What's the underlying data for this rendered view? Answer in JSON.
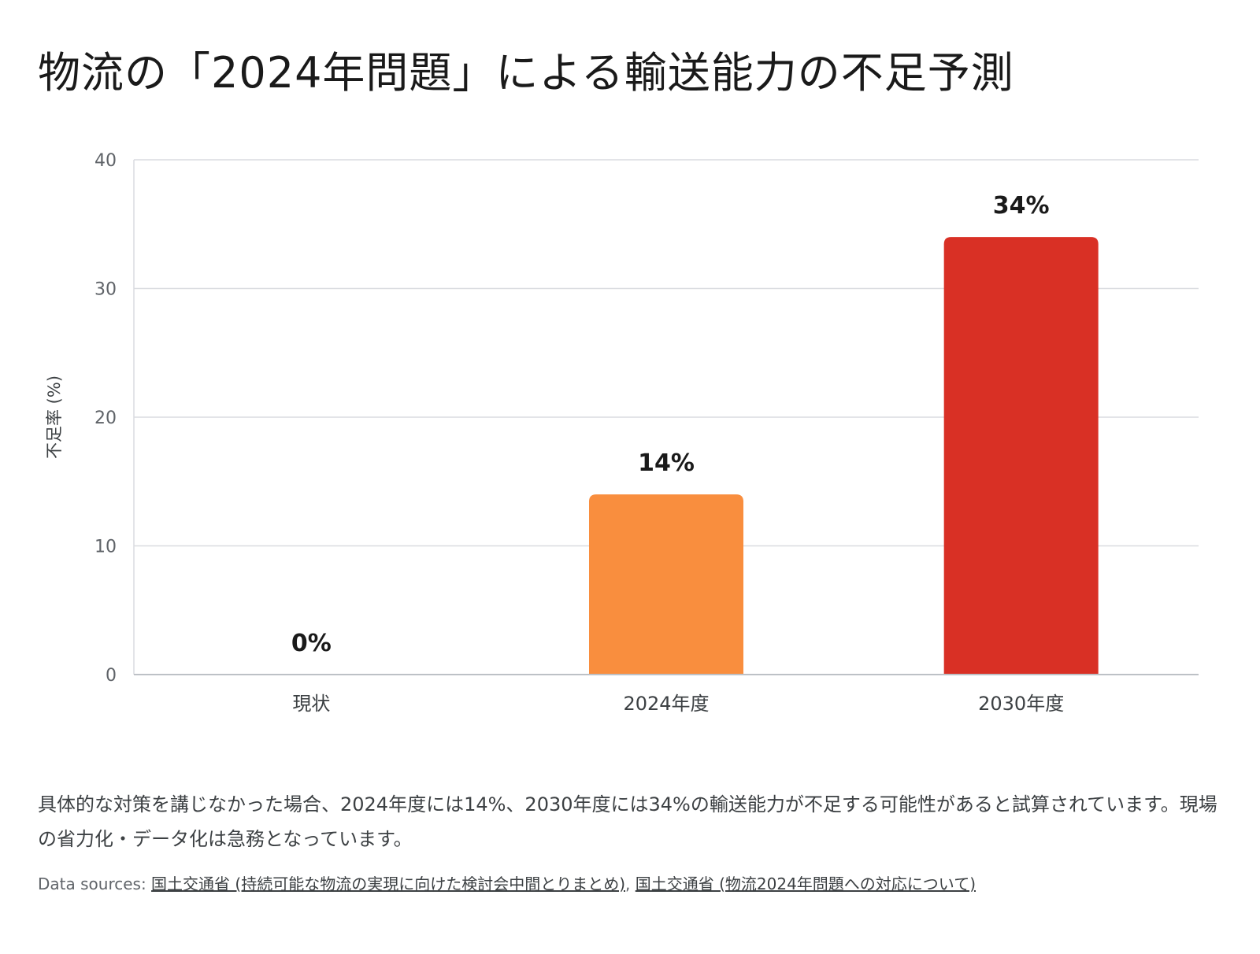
{
  "title": "物流の「2024年問題」による輸送能力の不足予測",
  "chart_data": {
    "type": "bar",
    "title": "物流の「2024年問題」による輸送能力の不足予測",
    "xlabel": "",
    "ylabel": "不足率 (%)",
    "categories": [
      "現状",
      "2024年度",
      "2030年度"
    ],
    "values": [
      0,
      14,
      34
    ],
    "data_labels": [
      "0%",
      "14%",
      "34%"
    ],
    "bar_colors": [
      "#f98e3e",
      "#f98e3e",
      "#d93025"
    ],
    "ylim": [
      0,
      40
    ],
    "yticks": [
      0,
      10,
      20,
      30,
      40
    ],
    "grid": true,
    "legend": "none"
  },
  "description": "具体的な対策を講じなかった場合、2024年度には14%、2030年度には34%の輸送能力が不足する可能性があると試算されています。現場の省力化・データ化は急務となっています。",
  "sources": {
    "label": "Data sources:",
    "links": [
      {
        "text": "国土交通省 (持続可能な物流の実現に向けた検討会中間とりまとめ)"
      },
      {
        "text": "国土交通省 (物流2024年問題への対応について)"
      }
    ],
    "separator": ","
  }
}
